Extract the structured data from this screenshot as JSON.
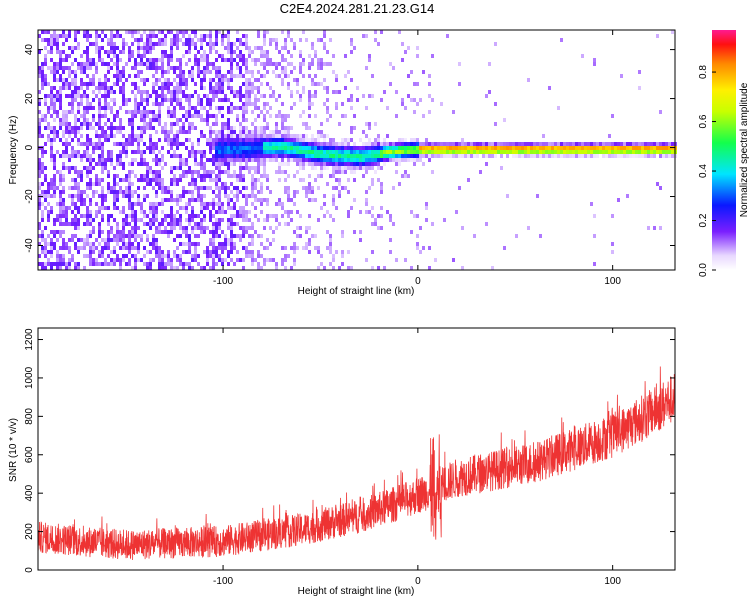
{
  "title": "C2E4.2024.281.21.23.G14",
  "chart_data": [
    {
      "type": "heatmap",
      "xlabel": "Height of straight line (km)",
      "ylabel": "Frequency (Hz)",
      "xlim": [
        -195,
        132
      ],
      "ylim": [
        -50,
        48
      ],
      "x_ticks": [
        -100,
        0,
        100
      ],
      "x_tick_labels": [
        "-100",
        "0",
        "100"
      ],
      "y_ticks": [
        -40,
        -20,
        0,
        20,
        40
      ],
      "y_tick_labels": [
        "-40",
        "-20",
        "0",
        "20",
        "40"
      ],
      "colorbar": {
        "label": "Normalized spectral amplitude",
        "range": [
          0,
          0.97
        ],
        "ticks": [
          0.0,
          0.2,
          0.4,
          0.6,
          0.8
        ],
        "tick_labels": [
          "0.0",
          "0.2",
          "0.4",
          "0.6",
          "0.8"
        ],
        "colormap": "rainbow (white → violet → blue → cyan → green → yellow → orange → red)"
      },
      "ridge_center_frequency": [
        {
          "x": -100,
          "y": 0
        },
        {
          "x": -70,
          "y": 1
        },
        {
          "x": -50,
          "y": -2
        },
        {
          "x": -30,
          "y": -3
        },
        {
          "x": -15,
          "y": -1
        },
        {
          "x": 0,
          "y": 0
        },
        {
          "x": 132,
          "y": 0
        }
      ]
    },
    {
      "type": "line",
      "xlabel": "Height of straight line (km)",
      "ylabel": "SNR (10 * v/v)",
      "xlim": [
        -195,
        132
      ],
      "ylim": [
        0,
        1260
      ],
      "x_ticks": [
        -100,
        0,
        100
      ],
      "x_tick_labels": [
        "-100",
        "0",
        "100"
      ],
      "y_ticks": [
        0,
        200,
        400,
        600,
        800,
        1000,
        1200
      ],
      "y_tick_labels": [
        "0",
        "200",
        "400",
        "600",
        "800",
        "1000",
        "1200"
      ],
      "series": [
        {
          "color": "#ee3333",
          "trend": [
            {
              "x": -195,
              "y": 170
            },
            {
              "x": -150,
              "y": 130
            },
            {
              "x": -100,
              "y": 150
            },
            {
              "x": -60,
              "y": 210
            },
            {
              "x": -30,
              "y": 280
            },
            {
              "x": -10,
              "y": 350
            },
            {
              "x": 10,
              "y": 430
            },
            {
              "x": 20,
              "y": 480
            },
            {
              "x": 40,
              "y": 520
            },
            {
              "x": 60,
              "y": 560
            },
            {
              "x": 80,
              "y": 630
            },
            {
              "x": 100,
              "y": 700
            },
            {
              "x": 120,
              "y": 820
            },
            {
              "x": 132,
              "y": 900
            }
          ],
          "spread": 130
        }
      ]
    }
  ]
}
